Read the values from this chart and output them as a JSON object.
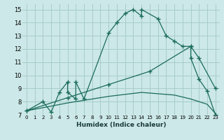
{
  "xlabel": "Humidex (Indice chaleur)",
  "bg_color": "#cce8e8",
  "grid_color": "#a8cccc",
  "line_color": "#1a6b5a",
  "xlim": [
    -0.5,
    23.5
  ],
  "ylim": [
    7,
    15.4
  ],
  "xtick_labels": [
    "0",
    "1",
    "2",
    "3",
    "4",
    "5",
    "6",
    "7",
    "8",
    "9",
    "10",
    "11",
    "12",
    "13",
    "14",
    "15",
    "16",
    "17",
    "18",
    "19",
    "20",
    "21",
    "22",
    "23"
  ],
  "ytick_labels": [
    "7",
    "8",
    "9",
    "10",
    "11",
    "12",
    "13",
    "14",
    "15"
  ],
  "ytick_vals": [
    7,
    8,
    9,
    10,
    11,
    12,
    13,
    14,
    15
  ],
  "s1_x": [
    0,
    2,
    3,
    4,
    5,
    5,
    6,
    6,
    7,
    10,
    11,
    12,
    13,
    14,
    14,
    16,
    17,
    18,
    19,
    20,
    20,
    21,
    22,
    23
  ],
  "s1_y": [
    7.3,
    8.0,
    7.2,
    8.7,
    9.5,
    8.7,
    8.2,
    9.5,
    8.2,
    13.2,
    14.0,
    14.7,
    15.0,
    14.5,
    15.0,
    14.3,
    13.0,
    12.6,
    12.2,
    12.2,
    11.3,
    9.7,
    8.8,
    7.0
  ],
  "s2_x": [
    0,
    5,
    10,
    15,
    20,
    21,
    23
  ],
  "s2_y": [
    7.3,
    8.3,
    9.3,
    10.3,
    12.2,
    11.3,
    9.0
  ],
  "s3_x": [
    0,
    5,
    10,
    14,
    18,
    20,
    21,
    22,
    23
  ],
  "s3_y": [
    7.3,
    7.9,
    8.4,
    8.7,
    8.5,
    8.2,
    8.0,
    7.8,
    7.1
  ]
}
